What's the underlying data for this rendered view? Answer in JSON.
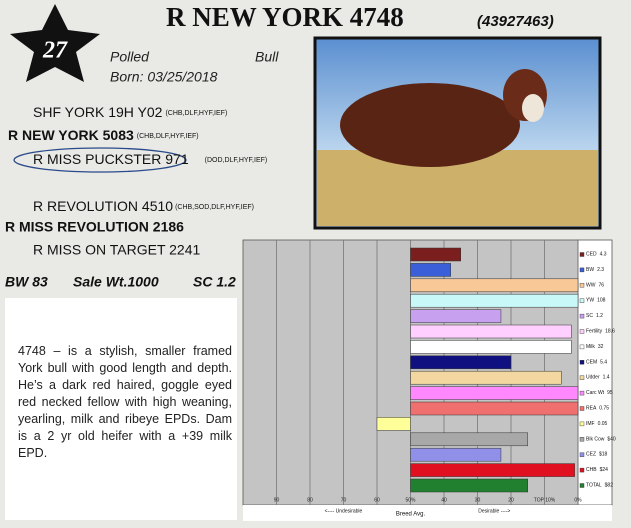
{
  "header": {
    "lot": "27",
    "title": "R NEW YORK 4748",
    "registration": "(43927463)",
    "polled": "Polled",
    "sex": "Bull",
    "born": "Born: 03/25/2018"
  },
  "pedigree": {
    "sire_sire": {
      "name": "SHF YORK 19H Y02",
      "tags": "(CHB,DLF,HYF,IEF)"
    },
    "sire": {
      "name": "R NEW YORK 5083",
      "tags": "(CHB,DLF,HYF,IEF)"
    },
    "sire_dam": {
      "name": "R MISS PUCKSTER 971",
      "tags": "(DOD,DLF,HYF,IEF)"
    },
    "dam_sire": {
      "name": "R REVOLUTION 4510",
      "tags": "(CHB,SOD,DLF,HYF,IEF)"
    },
    "dam": {
      "name": "R MISS REVOLUTION 2186"
    },
    "dam_dam": {
      "name": "R MISS ON TARGET 2241"
    }
  },
  "stats": [
    "BW 83",
    "Sale Wt.1000",
    "SC 1.2"
  ],
  "description": "4748 – is a stylish, smaller framed York bull with good length and depth. He’s a dark red haired, goggle eyed red necked fellow with high weaning, yearling, milk and ribeye EPDs. Dam is a 2 yr old heifer with a +39 milk EPD.",
  "chart_data": {
    "type": "bar",
    "orientation": "horizontal",
    "categories": [
      "CED",
      "BW",
      "WW",
      "YW",
      "SC",
      "Fertility",
      "Milk",
      "CEM",
      "Udder",
      "Carc Wt",
      "REA",
      "IMF",
      "Blk Cow",
      "CEZ",
      "CHB",
      "TOTAL"
    ],
    "epd": [
      "4.3",
      "2.3",
      "76",
      "108",
      "1.2",
      "18.6",
      "32",
      "5.4",
      "1.4",
      "95",
      "0.75",
      "0.05",
      "$40",
      "$18",
      "$24",
      "$82"
    ],
    "values": [
      35,
      38,
      0,
      0,
      23,
      2,
      2,
      20,
      5,
      0,
      0,
      60,
      15,
      23,
      1,
      15
    ],
    "colors": [
      "#7b1e1e",
      "#3a5fd8",
      "#f8c896",
      "#c8f8f8",
      "#c8a0f0",
      "#ffd0ff",
      "#ffffff",
      "#101080",
      "#f2d8a0",
      "#ff88ff",
      "#f07070",
      "#ffff99",
      "#a8a8a8",
      "#9090e8",
      "#e01020",
      "#208030"
    ],
    "base": 50,
    "xlim": [
      100,
      0
    ],
    "xticks": [
      90,
      80,
      70,
      60,
      {
        "value": 50,
        "label": "50%"
      },
      40,
      30,
      20,
      {
        "value": 10,
        "label": "TOP 10%"
      },
      {
        "value": 0,
        "label": "0%"
      }
    ],
    "grid": true,
    "axis_labels": {
      "left": "<---- Undesirable",
      "center": "Breed Avg.",
      "right": "Desirable ---->"
    }
  }
}
